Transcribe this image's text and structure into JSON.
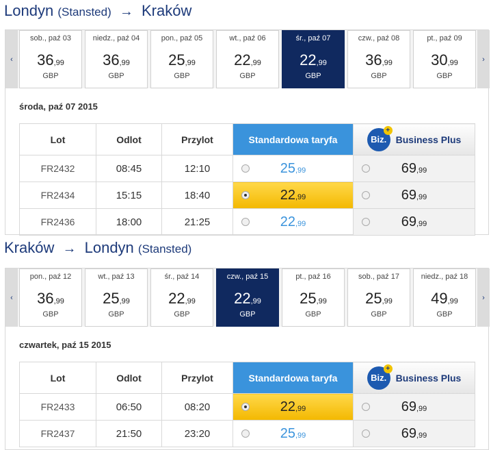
{
  "outbound": {
    "title": {
      "from": "Londyn",
      "from_airport": "(Stansted)",
      "arrow": "→",
      "to": "Kraków",
      "to_airport": ""
    },
    "prev_arrow": "‹",
    "next_arrow": "›",
    "days": [
      {
        "label": "sob., paź 03",
        "price": "36",
        "cents": ",99",
        "currency": "GBP",
        "selected": false
      },
      {
        "label": "niedz., paź 04",
        "price": "36",
        "cents": ",99",
        "currency": "GBP",
        "selected": false
      },
      {
        "label": "pon., paź 05",
        "price": "25",
        "cents": ",99",
        "currency": "GBP",
        "selected": false
      },
      {
        "label": "wt., paź 06",
        "price": "22",
        "cents": ",99",
        "currency": "GBP",
        "selected": false
      },
      {
        "label": "śr., paź 07",
        "price": "22",
        "cents": ",99",
        "currency": "GBP",
        "selected": true
      },
      {
        "label": "czw., paź 08",
        "price": "36",
        "cents": ",99",
        "currency": "GBP",
        "selected": false
      },
      {
        "label": "pt., paź 09",
        "price": "30",
        "cents": ",99",
        "currency": "GBP",
        "selected": false
      }
    ],
    "date_heading": "środa, paź 07 2015",
    "headers": {
      "flight": "Lot",
      "depart": "Odlot",
      "arrive": "Przylot",
      "standard": "Standardowa taryfa",
      "business": "Business Plus",
      "biz_icon": "Biz."
    },
    "flights": [
      {
        "number": "FR2432",
        "depart": "08:45",
        "arrive": "12:10",
        "std_price": "25",
        "std_cents": ",99",
        "std_selected": false,
        "biz_price": "69",
        "biz_cents": ",99"
      },
      {
        "number": "FR2434",
        "depart": "15:15",
        "arrive": "18:40",
        "std_price": "22",
        "std_cents": ",99",
        "std_selected": true,
        "biz_price": "69",
        "biz_cents": ",99"
      },
      {
        "number": "FR2436",
        "depart": "18:00",
        "arrive": "21:25",
        "std_price": "22",
        "std_cents": ",99",
        "std_selected": false,
        "biz_price": "69",
        "biz_cents": ",99"
      }
    ]
  },
  "inbound": {
    "title": {
      "from": "Kraków",
      "from_airport": "",
      "arrow": "→",
      "to": "Londyn",
      "to_airport": "(Stansted)"
    },
    "prev_arrow": "‹",
    "next_arrow": "›",
    "days": [
      {
        "label": "pon., paź 12",
        "price": "36",
        "cents": ",99",
        "currency": "GBP",
        "selected": false
      },
      {
        "label": "wt., paź 13",
        "price": "25",
        "cents": ",99",
        "currency": "GBP",
        "selected": false
      },
      {
        "label": "śr., paź 14",
        "price": "22",
        "cents": ",99",
        "currency": "GBP",
        "selected": false
      },
      {
        "label": "czw., paź 15",
        "price": "22",
        "cents": ",99",
        "currency": "GBP",
        "selected": true
      },
      {
        "label": "pt., paź 16",
        "price": "25",
        "cents": ",99",
        "currency": "GBP",
        "selected": false
      },
      {
        "label": "sob., paź 17",
        "price": "25",
        "cents": ",99",
        "currency": "GBP",
        "selected": false
      },
      {
        "label": "niedz., paź 18",
        "price": "49",
        "cents": ",99",
        "currency": "GBP",
        "selected": false
      }
    ],
    "date_heading": "czwartek, paź 15 2015",
    "headers": {
      "flight": "Lot",
      "depart": "Odlot",
      "arrive": "Przylot",
      "standard": "Standardowa taryfa",
      "business": "Business Plus",
      "biz_icon": "Biz."
    },
    "flights": [
      {
        "number": "FR2433",
        "depart": "06:50",
        "arrive": "08:20",
        "std_price": "22",
        "std_cents": ",99",
        "std_selected": true,
        "biz_price": "69",
        "biz_cents": ",99"
      },
      {
        "number": "FR2437",
        "depart": "21:50",
        "arrive": "23:20",
        "std_price": "25",
        "std_cents": ",99",
        "std_selected": false,
        "biz_price": "69",
        "biz_cents": ",99"
      }
    ]
  },
  "colors": {
    "brand_navy": "#10295f",
    "standard_blue": "#3a93dc",
    "selected_fare_yellow": "#f3b800",
    "title_blue": "#1d3a7a"
  },
  "icons": {
    "biz_plus": "plus-badge-icon"
  }
}
